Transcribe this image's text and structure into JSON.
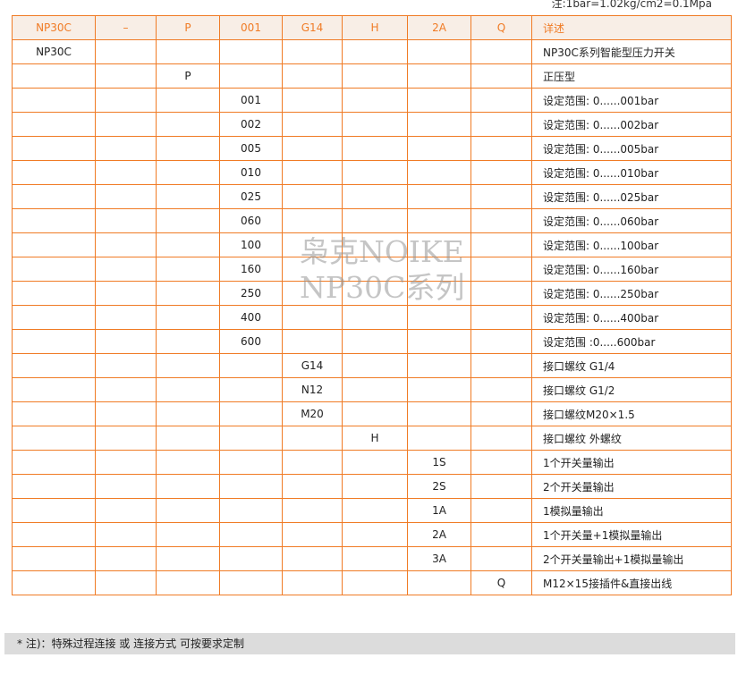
{
  "note": "注:1bar=1.02kg/cm2=0.1Mpa",
  "header": [
    "NP30C",
    "–",
    "P",
    "001",
    "G14",
    "H",
    "2A",
    "Q",
    "详述"
  ],
  "rows": [
    [
      "NP30C",
      "",
      "",
      "",
      "",
      "",
      "",
      "",
      "NP30C系列智能型压力开关"
    ],
    [
      "",
      "",
      "P",
      "",
      "",
      "",
      "",
      "",
      "正压型"
    ],
    [
      "",
      "",
      "",
      "001",
      "",
      "",
      "",
      "",
      "设定范围: 0......001bar"
    ],
    [
      "",
      "",
      "",
      "002",
      "",
      "",
      "",
      "",
      "设定范围: 0......002bar"
    ],
    [
      "",
      "",
      "",
      "005",
      "",
      "",
      "",
      "",
      "设定范围: 0......005bar"
    ],
    [
      "",
      "",
      "",
      "010",
      "",
      "",
      "",
      "",
      "设定范围: 0......010bar"
    ],
    [
      "",
      "",
      "",
      "025",
      "",
      "",
      "",
      "",
      "设定范围: 0......025bar"
    ],
    [
      "",
      "",
      "",
      "060",
      "",
      "",
      "",
      "",
      "设定范围: 0......060bar"
    ],
    [
      "",
      "",
      "",
      "100",
      "",
      "",
      "",
      "",
      "设定范围: 0......100bar"
    ],
    [
      "",
      "",
      "",
      "160",
      "",
      "",
      "",
      "",
      "设定范围: 0......160bar"
    ],
    [
      "",
      "",
      "",
      "250",
      "",
      "",
      "",
      "",
      "设定范围: 0......250bar"
    ],
    [
      "",
      "",
      "",
      "400",
      "",
      "",
      "",
      "",
      "设定范围: 0......400bar"
    ],
    [
      "",
      "",
      "",
      "600",
      "",
      "",
      "",
      "",
      "设定范围 :0.....600bar"
    ],
    [
      "",
      "",
      "",
      "",
      "G14",
      "",
      "",
      "",
      "接口螺纹 G1/4"
    ],
    [
      "",
      "",
      "",
      "",
      "N12",
      "",
      "",
      "",
      "接口螺纹 G1/2"
    ],
    [
      "",
      "",
      "",
      "",
      "M20",
      "",
      "",
      "",
      "接口螺纹M20×1.5"
    ],
    [
      "",
      "",
      "",
      "",
      "",
      "H",
      "",
      "",
      "接口螺纹 外螺纹"
    ],
    [
      "",
      "",
      "",
      "",
      "",
      "",
      "1S",
      "",
      "1个开关量输出"
    ],
    [
      "",
      "",
      "",
      "",
      "",
      "",
      "2S",
      "",
      "2个开关量输出"
    ],
    [
      "",
      "",
      "",
      "",
      "",
      "",
      "1A",
      "",
      "1模拟量输出"
    ],
    [
      "",
      "",
      "",
      "",
      "",
      "",
      "2A",
      "",
      "1个开关量+1模拟量输出"
    ],
    [
      "",
      "",
      "",
      "",
      "",
      "",
      "3A",
      "",
      "2个开关量输出+1模拟量输出"
    ],
    [
      "",
      "",
      "",
      "",
      "",
      "",
      "",
      "Q",
      "M12×15接插件&直接出线"
    ]
  ],
  "watermark": "枭克NOIKE NP30C系列",
  "footer": "* 注)：特殊过程连接 或 连接方式 可按要求定制",
  "colors": {
    "accent": "#f07b25",
    "header_bg": "#f8eee6",
    "footer_bg": "#dcdcdc"
  }
}
